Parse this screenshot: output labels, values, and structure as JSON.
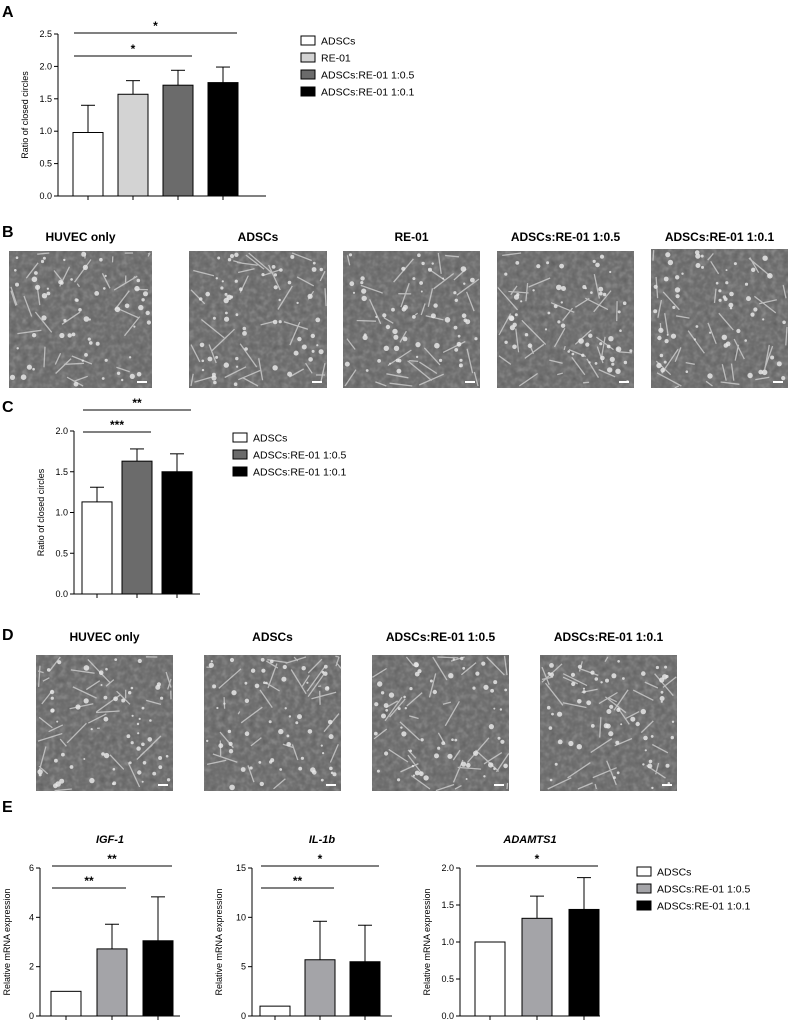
{
  "panels": {
    "A": "A",
    "B": "B",
    "C": "C",
    "D": "D",
    "E": "E"
  },
  "colors": {
    "ADSCs": "#ffffff",
    "RE-01": "#d3d3d3",
    "ADSCs:RE-01 1:0.5": "#6b6b6b",
    "ADSCs:RE-01 1:0.1": "#000000",
    "ADSCs:RE-01 1:0.5 (E)": "#a4a4a8"
  },
  "microscopy": {
    "B": [
      "HUVEC only",
      "ADSCs",
      "RE-01",
      "ADSCs:RE-01 1:0.5",
      "ADSCs:RE-01 1:0.1"
    ],
    "D": [
      "HUVEC only",
      "ADSCs",
      "ADSCs:RE-01 1:0.5",
      "ADSCs:RE-01 1:0.1"
    ]
  },
  "chart_data": [
    {
      "id": "A",
      "type": "bar",
      "categories": [
        "ADSCs",
        "RE-01",
        "ADSCs:RE-01 1:0.5",
        "ADSCs:RE-01 1:0.1"
      ],
      "values": [
        0.98,
        1.57,
        1.71,
        1.75
      ],
      "errors": [
        0.42,
        0.21,
        0.23,
        0.24
      ],
      "title": "",
      "xlabel": "",
      "ylabel": "Ratio of closed circles",
      "ylim": [
        0,
        2.5
      ],
      "yticks": [
        "0.0",
        "0.5",
        "1.0",
        "1.5",
        "2.0",
        "2.5"
      ],
      "significance": [
        {
          "from": 0,
          "to": 3,
          "label": "*"
        },
        {
          "from": 0,
          "to": 2,
          "label": "*"
        }
      ],
      "legend": [
        "ADSCs",
        "RE-01",
        "ADSCs:RE-01 1:0.5",
        "ADSCs:RE-01 1:0.1"
      ],
      "legend_position": "right"
    },
    {
      "id": "C",
      "type": "bar",
      "categories": [
        "ADSCs",
        "ADSCs:RE-01 1:0.5",
        "ADSCs:RE-01 1:0.1"
      ],
      "values": [
        1.13,
        1.63,
        1.5
      ],
      "errors": [
        0.18,
        0.15,
        0.22
      ],
      "title": "",
      "xlabel": "",
      "ylabel": "Ratio of closed circles",
      "ylim": [
        0,
        2.0
      ],
      "yticks": [
        "0.0",
        "0.5",
        "1.0",
        "1.5",
        "2.0"
      ],
      "significance": [
        {
          "from": 0,
          "to": 2,
          "label": "**"
        },
        {
          "from": 0,
          "to": 1,
          "label": "***"
        }
      ],
      "legend": [
        "ADSCs",
        "ADSCs:RE-01 1:0.5",
        "ADSCs:RE-01 1:0.1"
      ],
      "legend_position": "right"
    },
    {
      "id": "E1",
      "type": "bar",
      "categories": [
        "ADSCs",
        "ADSCs:RE-01 1:0.5",
        "ADSCs:RE-01 1:0.1"
      ],
      "values": [
        1.0,
        2.72,
        3.05
      ],
      "errors": [
        0,
        1.0,
        1.78
      ],
      "title": "IGF-1",
      "xlabel": "",
      "ylabel": "Relative mRNA expression",
      "ylim": [
        0,
        6
      ],
      "yticks": [
        "0",
        "2",
        "4",
        "6"
      ],
      "significance": [
        {
          "from": 0,
          "to": 2,
          "label": "**"
        },
        {
          "from": 0,
          "to": 1,
          "label": "**"
        }
      ]
    },
    {
      "id": "E2",
      "type": "bar",
      "categories": [
        "ADSCs",
        "ADSCs:RE-01 1:0.5",
        "ADSCs:RE-01 1:0.1"
      ],
      "values": [
        1.0,
        5.7,
        5.5
      ],
      "errors": [
        0,
        3.9,
        3.7
      ],
      "title": "IL-1b",
      "xlabel": "",
      "ylabel": "Relative mRNA expression",
      "ylim": [
        0,
        15
      ],
      "yticks": [
        "0",
        "5",
        "10",
        "15"
      ],
      "significance": [
        {
          "from": 0,
          "to": 2,
          "label": "*"
        },
        {
          "from": 0,
          "to": 1,
          "label": "**"
        }
      ]
    },
    {
      "id": "E3",
      "type": "bar",
      "categories": [
        "ADSCs",
        "ADSCs:RE-01 1:0.5",
        "ADSCs:RE-01 1:0.1"
      ],
      "values": [
        1.0,
        1.32,
        1.44
      ],
      "errors": [
        0,
        0.3,
        0.43
      ],
      "title": "ADAMTS1",
      "xlabel": "",
      "ylabel": "Relative mRNA expression",
      "ylim": [
        0,
        2.0
      ],
      "yticks": [
        "0.0",
        "0.5",
        "1.0",
        "1.5",
        "2.0"
      ],
      "significance": [
        {
          "from": 0,
          "to": 2,
          "label": "*"
        }
      ],
      "legend": [
        "ADSCs",
        "ADSCs:RE-01 1:0.5",
        "ADSCs:RE-01 1:0.1"
      ],
      "legend_position": "right"
    }
  ]
}
